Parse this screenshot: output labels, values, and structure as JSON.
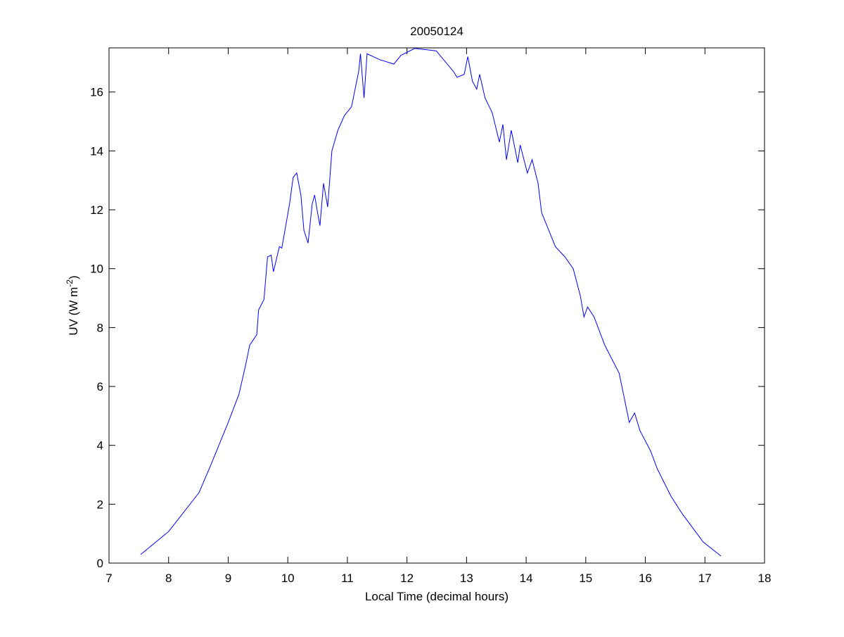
{
  "chart_data": {
    "type": "line",
    "title": "20050124",
    "xlabel": "Local Time (decimal hours)",
    "ylabel_main": "UV (W m",
    "ylabel_sup": "-2",
    "ylabel_close": ")",
    "xlim": [
      7,
      18
    ],
    "ylim": [
      0,
      17.5
    ],
    "xticks": [
      7,
      8,
      9,
      10,
      11,
      12,
      13,
      14,
      15,
      16,
      17,
      18
    ],
    "yticks": [
      0,
      2,
      4,
      6,
      8,
      10,
      12,
      14,
      16
    ],
    "grid": false,
    "line_color": "#0000ff",
    "series": [
      {
        "name": "UV",
        "x": [
          7.53,
          8.0,
          8.51,
          8.71,
          9.0,
          9.18,
          9.3,
          9.36,
          9.48,
          9.51,
          9.6,
          9.66,
          9.72,
          9.76,
          9.86,
          9.9,
          10.03,
          10.09,
          10.15,
          10.22,
          10.27,
          10.34,
          10.41,
          10.45,
          10.5,
          10.54,
          10.6,
          10.67,
          10.74,
          10.84,
          10.95,
          11.07,
          11.19,
          11.22,
          11.28,
          11.33,
          11.54,
          11.78,
          11.9,
          12.13,
          12.49,
          12.78,
          12.84,
          12.96,
          13.02,
          13.1,
          13.17,
          13.22,
          13.31,
          13.43,
          13.55,
          13.61,
          13.67,
          13.75,
          13.86,
          13.9,
          14.02,
          14.1,
          14.2,
          14.26,
          14.38,
          14.49,
          14.65,
          14.79,
          14.91,
          14.97,
          15.03,
          15.14,
          15.32,
          15.56,
          15.73,
          15.82,
          15.91,
          16.09,
          16.2,
          16.43,
          16.62,
          16.97,
          17.27
        ],
        "y": [
          0.29,
          1.07,
          2.39,
          3.34,
          4.78,
          5.73,
          6.8,
          7.4,
          7.76,
          8.6,
          8.95,
          10.4,
          10.46,
          9.9,
          10.75,
          10.7,
          12.2,
          13.1,
          13.25,
          12.5,
          11.3,
          10.87,
          12.2,
          12.5,
          11.9,
          11.46,
          12.9,
          12.1,
          14.0,
          14.7,
          15.2,
          15.5,
          16.7,
          17.3,
          15.8,
          17.3,
          17.1,
          16.95,
          17.25,
          17.48,
          17.4,
          16.7,
          16.5,
          16.6,
          17.2,
          16.36,
          16.1,
          16.6,
          15.8,
          15.3,
          14.3,
          14.9,
          13.7,
          14.7,
          13.6,
          14.2,
          13.25,
          13.7,
          12.9,
          11.9,
          11.3,
          10.75,
          10.4,
          10.0,
          9.07,
          8.36,
          8.7,
          8.36,
          7.4,
          6.45,
          4.78,
          5.1,
          4.5,
          3.8,
          3.2,
          2.27,
          1.67,
          0.72,
          0.24
        ]
      }
    ]
  }
}
